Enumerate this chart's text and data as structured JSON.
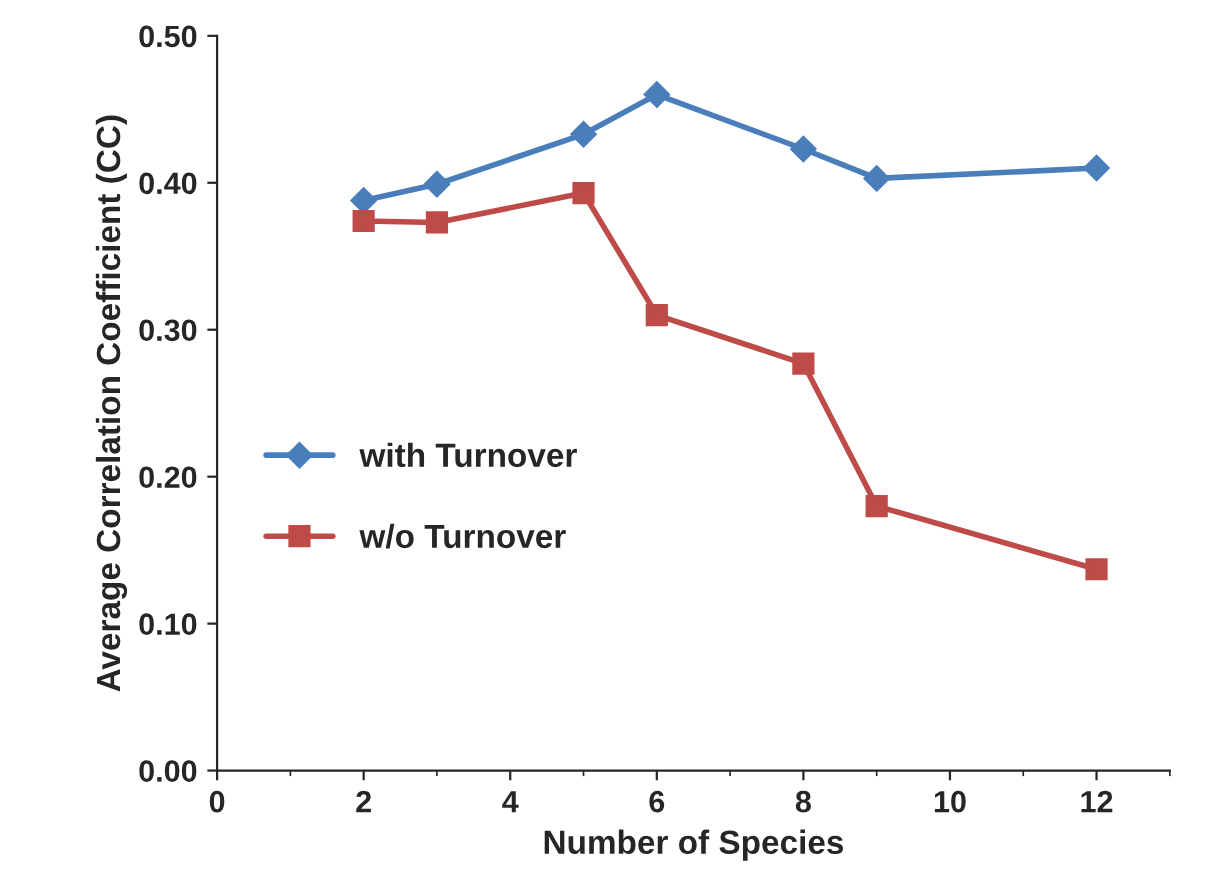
{
  "chart_data": {
    "type": "line",
    "xlabel": "Number of Species",
    "ylabel": "Average Correlation Coefficient (CC)",
    "x": [
      2,
      3,
      5,
      6,
      8,
      9,
      12
    ],
    "series": [
      {
        "name": "with Turnover",
        "color": "#4a7ebb",
        "marker": "diamond",
        "values": [
          0.388,
          0.399,
          0.433,
          0.46,
          0.423,
          0.403,
          0.41
        ]
      },
      {
        "name": "w/o Turnover",
        "color": "#be4b48",
        "marker": "square",
        "values": [
          0.374,
          0.373,
          0.393,
          0.31,
          0.277,
          0.18,
          0.137
        ]
      }
    ],
    "xlim": [
      0,
      13
    ],
    "xticks": [
      0,
      2,
      4,
      6,
      8,
      10,
      12
    ],
    "ylim": [
      0,
      0.5
    ],
    "yticks": [
      {
        "value": 0,
        "label": "0.00"
      },
      {
        "value": 0.1,
        "label": "0.10"
      },
      {
        "value": 0.2,
        "label": "0.20"
      },
      {
        "value": 0.3,
        "label": "0.30"
      },
      {
        "value": 0.4,
        "label": "0.40"
      },
      {
        "value": 0.5,
        "label": "0.50"
      }
    ],
    "grid": false,
    "legend": "center left",
    "line_style": "solid"
  }
}
